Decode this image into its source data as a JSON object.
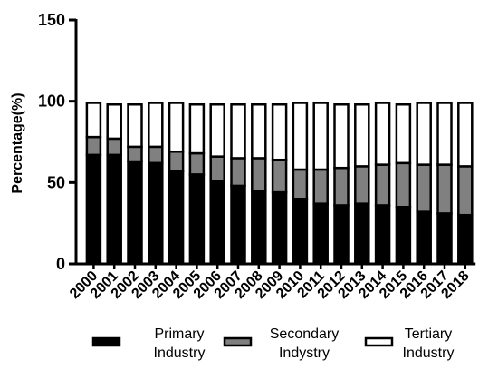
{
  "chart_data": {
    "type": "bar",
    "stacked": true,
    "ylabel": "Percentage(%)",
    "xlabel": "",
    "ylim": [
      0,
      150
    ],
    "yticks": [
      0,
      50,
      100,
      150
    ],
    "categories": [
      "2000",
      "2001",
      "2002",
      "2003",
      "2004",
      "2005",
      "2006",
      "2007",
      "2008",
      "2009",
      "2010",
      "2011",
      "2012",
      "2013",
      "2014",
      "2015",
      "2016",
      "2017",
      "2018"
    ],
    "series": [
      {
        "name_line1": "Primary",
        "name_line2": "Industry",
        "color": "#000000",
        "values": [
          67,
          67,
          63,
          62,
          57,
          55,
          51,
          48,
          45,
          44,
          40,
          37,
          36,
          37,
          36,
          35,
          32,
          31,
          30
        ]
      },
      {
        "name_line1": "Secondary",
        "name_line2": "Indystry",
        "color": "#808080",
        "values": [
          11,
          10,
          9,
          10,
          12,
          13,
          15,
          17,
          20,
          20,
          18,
          21,
          23,
          23,
          25,
          27,
          29,
          30,
          30
        ]
      },
      {
        "name_line1": "Tertiary",
        "name_line2": "Industry",
        "color": "#ffffff",
        "values": [
          21,
          21,
          26,
          27,
          30,
          30,
          32,
          33,
          33,
          34,
          41,
          41,
          39,
          38,
          38,
          36,
          38,
          38,
          39
        ]
      }
    ],
    "legend_position": "bottom"
  }
}
